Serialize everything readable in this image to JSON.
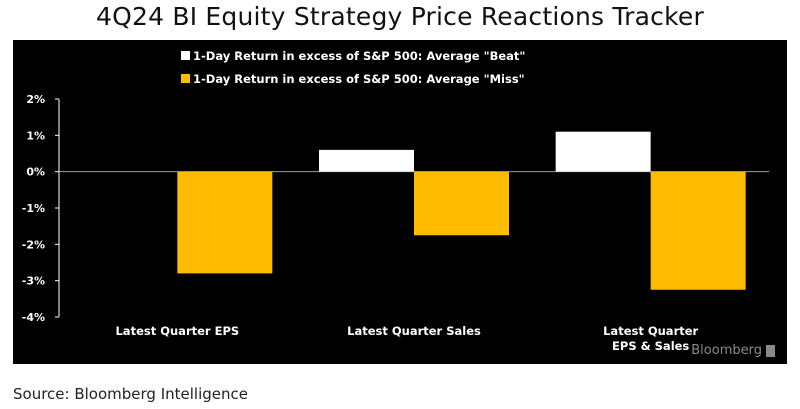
{
  "chart_data": {
    "type": "bar",
    "title": "4Q24 BI Equity Strategy Price Reactions Tracker",
    "categories": [
      [
        "Latest Quarter EPS"
      ],
      [
        "Latest Quarter Sales"
      ],
      [
        "Latest Quarter",
        "EPS & Sales"
      ]
    ],
    "series": [
      {
        "name": "1-Day Return in excess of S&P 500: Average \"Beat\"",
        "color": "#ffffff",
        "values": [
          0.0,
          0.6,
          1.1
        ]
      },
      {
        "name": "1-Day Return in excess of S&P 500: Average \"Miss\"",
        "color": "#ffbb00",
        "values": [
          -2.8,
          -1.75,
          -3.25
        ]
      }
    ],
    "yticks": [
      2,
      1,
      0,
      -1,
      -2,
      -3,
      -4
    ],
    "ytick_labels": [
      "2%",
      "1%",
      "0%",
      "-1%",
      "-2%",
      "-3%",
      "-4%"
    ],
    "ylim": [
      -4,
      2
    ],
    "xlabel": "",
    "ylabel": "",
    "legend_position": "top-left"
  },
  "brand": "Bloomberg",
  "source": "Source: Bloomberg Intelligence"
}
